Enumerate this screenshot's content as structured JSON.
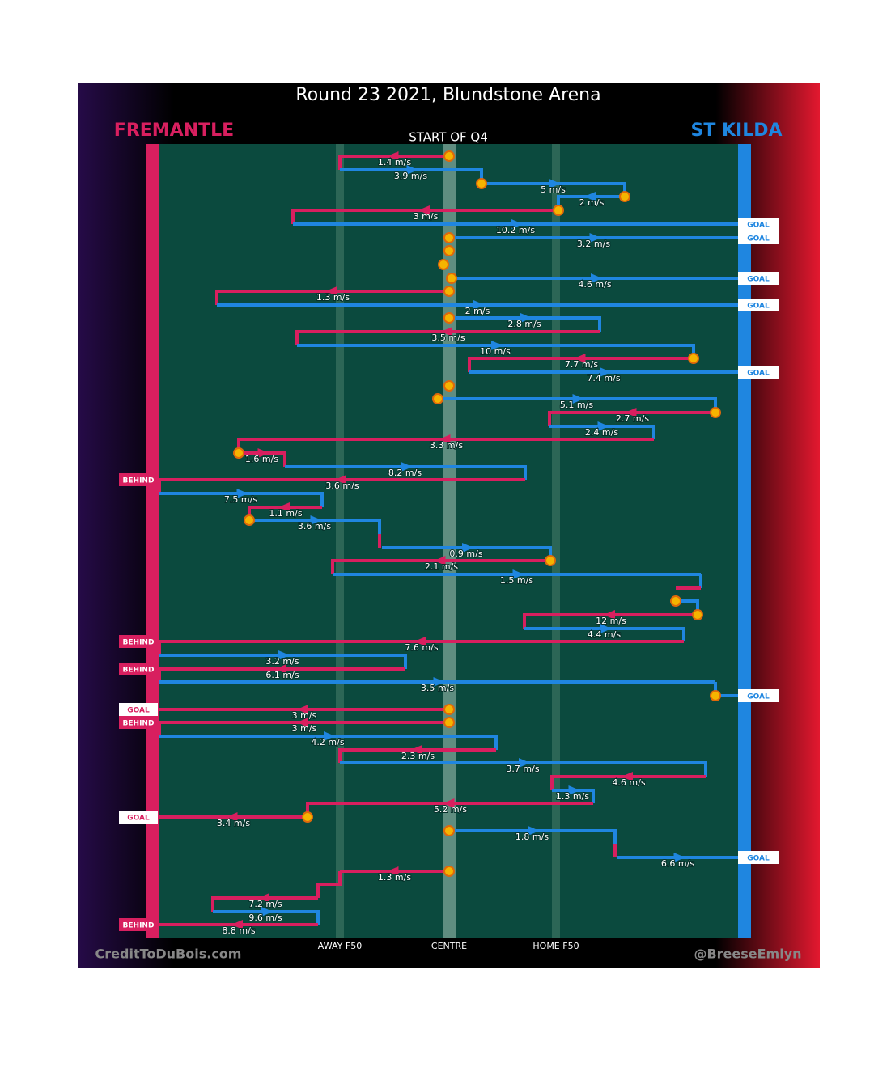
{
  "header": {
    "title": "Round 23 2021, Blundstone Arena",
    "period": "START OF Q4"
  },
  "teams": [
    {
      "name": "FREMANTLE",
      "color": "#d81f5f"
    },
    {
      "name": "ST KILDA",
      "color": "#1f86e0"
    }
  ],
  "zones": [
    "AWAY F50",
    "CENTRE",
    "HOME F50"
  ],
  "credits": [
    "CreditToDuBois.com",
    "@BreeseEmlyn"
  ],
  "moves": [
    {
      "speed": "1.4 m/s"
    },
    {
      "speed": "3.9 m/s"
    },
    {
      "speed": "5 m/s"
    },
    {
      "speed": "2 m/s"
    },
    {
      "speed": "3 m/s"
    },
    {
      "speed": "10.2 m/s",
      "result": "GOAL"
    },
    {
      "speed": "3.2 m/s",
      "result": "GOAL"
    },
    {
      "speed": "4.6 m/s",
      "result": "GOAL"
    },
    {
      "speed": "1.3 m/s"
    },
    {
      "speed": "2 m/s",
      "result": "GOAL"
    },
    {
      "speed": "2.8 m/s"
    },
    {
      "speed": "3.5 m/s"
    },
    {
      "speed": "10 m/s"
    },
    {
      "speed": "7.7 m/s"
    },
    {
      "speed": "7.4 m/s",
      "result": "GOAL"
    },
    {
      "speed": "5.1 m/s"
    },
    {
      "speed": "2.7 m/s"
    },
    {
      "speed": "2.4 m/s"
    },
    {
      "speed": "3.3 m/s"
    },
    {
      "speed": "1.6 m/s"
    },
    {
      "speed": "8.2 m/s"
    },
    {
      "speed": "3.6 m/s",
      "result": "BEHIND"
    },
    {
      "speed": "7.5 m/s"
    },
    {
      "speed": "1.1 m/s"
    },
    {
      "speed": "3.6 m/s"
    },
    {
      "speed": "0.9 m/s"
    },
    {
      "speed": "2.1 m/s"
    },
    {
      "speed": "1.5 m/s"
    },
    {
      "speed": "12 m/s"
    },
    {
      "speed": "4.4 m/s"
    },
    {
      "speed": "7.6 m/s",
      "result": "BEHIND"
    },
    {
      "speed": "3.2 m/s"
    },
    {
      "speed": "6.1 m/s",
      "result": "BEHIND"
    },
    {
      "speed": "3.5 m/s",
      "result": "GOAL"
    },
    {
      "speed": "3 m/s",
      "result": "GOAL"
    },
    {
      "speed": "3 m/s",
      "result": "BEHIND"
    },
    {
      "speed": "4.2 m/s"
    },
    {
      "speed": "2.3 m/s"
    },
    {
      "speed": "3.7 m/s"
    },
    {
      "speed": "4.6 m/s"
    },
    {
      "speed": "1.3 m/s"
    },
    {
      "speed": "5.2 m/s"
    },
    {
      "speed": "3.4 m/s",
      "result": "GOAL"
    },
    {
      "speed": "1.8 m/s"
    },
    {
      "speed": "6.6 m/s",
      "result": "GOAL"
    },
    {
      "speed": "1.3 m/s"
    },
    {
      "speed": "7.2 m/s"
    },
    {
      "speed": "9.6 m/s"
    },
    {
      "speed": "8.8 m/s",
      "result": "BEHIND"
    }
  ]
}
